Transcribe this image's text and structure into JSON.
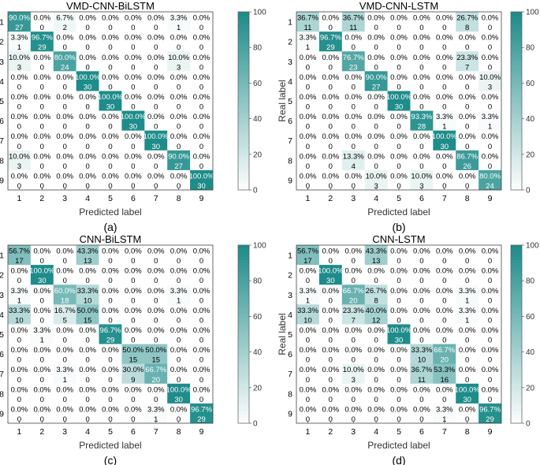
{
  "figure": {
    "colormap": {
      "low": "#ffffff",
      "high": "#1e8c8a"
    },
    "text_dark": "#000000",
    "text_light": "#ffffff"
  },
  "chart_data": [
    {
      "type": "heatmap",
      "title": "VMD-CNN-BiLSTM",
      "caption": "(a)",
      "xlabel": "Predicted label",
      "ylabel": "Real label",
      "categories": [
        "1",
        "2",
        "3",
        "4",
        "5",
        "6",
        "7",
        "8",
        "9"
      ],
      "colorbar": {
        "min": 0,
        "max": 100,
        "ticks": [
          "0",
          "20",
          "40",
          "60",
          "80",
          "100"
        ]
      },
      "percent": [
        [
          "90.0%",
          "0.0%",
          "6.7%",
          "0.0%",
          "0.0%",
          "0.0%",
          "0.0%",
          "3.3%",
          "0.0%"
        ],
        [
          "3.3%",
          "96.7%",
          "0.0%",
          "0.0%",
          "0.0%",
          "0.0%",
          "0.0%",
          "0.0%",
          "0.0%"
        ],
        [
          "10.0%",
          "0.0%",
          "80.0%",
          "0.0%",
          "0.0%",
          "0.0%",
          "0.0%",
          "10.0%",
          "0.0%"
        ],
        [
          "0.0%",
          "0.0%",
          "0.0%",
          "100.0%",
          "0.0%",
          "0.0%",
          "0.0%",
          "0.0%",
          "0.0%"
        ],
        [
          "0.0%",
          "0.0%",
          "0.0%",
          "0.0%",
          "100.0%",
          "0.0%",
          "0.0%",
          "0.0%",
          "0.0%"
        ],
        [
          "0.0%",
          "0.0%",
          "0.0%",
          "0.0%",
          "0.0%",
          "100.0%",
          "0.0%",
          "0.0%",
          "0.0%"
        ],
        [
          "0.0%",
          "0.0%",
          "0.0%",
          "0.0%",
          "0.0%",
          "0.0%",
          "100.0%",
          "0.0%",
          "0.0%"
        ],
        [
          "10.0%",
          "0.0%",
          "0.0%",
          "0.0%",
          "0.0%",
          "0.0%",
          "0.0%",
          "90.0%",
          "0.0%"
        ],
        [
          "0.0%",
          "0.0%",
          "0.0%",
          "0.0%",
          "0.0%",
          "0.0%",
          "0.0%",
          "0.0%",
          "100.0%"
        ]
      ],
      "counts": [
        [
          27,
          0,
          2,
          0,
          0,
          0,
          0,
          1,
          0
        ],
        [
          1,
          29,
          0,
          0,
          0,
          0,
          0,
          0,
          0
        ],
        [
          3,
          0,
          24,
          0,
          0,
          0,
          0,
          3,
          0
        ],
        [
          0,
          0,
          0,
          30,
          0,
          0,
          0,
          0,
          0
        ],
        [
          0,
          0,
          0,
          0,
          30,
          0,
          0,
          0,
          0
        ],
        [
          0,
          0,
          0,
          0,
          0,
          30,
          0,
          0,
          0
        ],
        [
          0,
          0,
          0,
          0,
          0,
          0,
          30,
          0,
          0
        ],
        [
          3,
          0,
          0,
          0,
          0,
          0,
          0,
          27,
          0
        ],
        [
          0,
          0,
          0,
          0,
          0,
          0,
          0,
          0,
          30
        ]
      ]
    },
    {
      "type": "heatmap",
      "title": "VMD-CNN-LSTM",
      "caption": "(b)",
      "xlabel": "Predicted label",
      "ylabel": "Real label",
      "categories": [
        "1",
        "2",
        "3",
        "4",
        "5",
        "6",
        "7",
        "8",
        "9"
      ],
      "colorbar": {
        "min": 0,
        "max": 100,
        "ticks": [
          "0",
          "20",
          "40",
          "60",
          "80",
          "100"
        ]
      },
      "percent": [
        [
          "36.7%",
          "0.0%",
          "36.7%",
          "0.0%",
          "0.0%",
          "0.0%",
          "0.0%",
          "26.7%",
          "0.0%"
        ],
        [
          "3.3%",
          "96.7%",
          "0.0%",
          "0.0%",
          "0.0%",
          "0.0%",
          "0.0%",
          "0.0%",
          "0.0%"
        ],
        [
          "0.0%",
          "0.0%",
          "76.7%",
          "0.0%",
          "0.0%",
          "0.0%",
          "0.0%",
          "23.3%",
          "0.0%"
        ],
        [
          "0.0%",
          "0.0%",
          "0.0%",
          "90.0%",
          "0.0%",
          "0.0%",
          "0.0%",
          "0.0%",
          "10.0%"
        ],
        [
          "0.0%",
          "0.0%",
          "0.0%",
          "0.0%",
          "100.0%",
          "0.0%",
          "0.0%",
          "0.0%",
          "0.0%"
        ],
        [
          "0.0%",
          "0.0%",
          "0.0%",
          "0.0%",
          "0.0%",
          "93.3%",
          "3.3%",
          "0.0%",
          "3.3%"
        ],
        [
          "0.0%",
          "0.0%",
          "0.0%",
          "0.0%",
          "0.0%",
          "0.0%",
          "100.0%",
          "0.0%",
          "0.0%"
        ],
        [
          "0.0%",
          "0.0%",
          "13.3%",
          "0.0%",
          "0.0%",
          "0.0%",
          "0.0%",
          "86.7%",
          "0.0%"
        ],
        [
          "0.0%",
          "0.0%",
          "0.0%",
          "10.0%",
          "0.0%",
          "10.0%",
          "0.0%",
          "0.0%",
          "80.0%"
        ]
      ],
      "counts": [
        [
          11,
          0,
          11,
          0,
          0,
          0,
          0,
          8,
          0
        ],
        [
          1,
          29,
          0,
          0,
          0,
          0,
          0,
          0,
          0
        ],
        [
          0,
          0,
          23,
          0,
          0,
          0,
          0,
          7,
          0
        ],
        [
          0,
          0,
          0,
          27,
          0,
          0,
          0,
          0,
          3
        ],
        [
          0,
          0,
          0,
          0,
          30,
          0,
          0,
          0,
          0
        ],
        [
          0,
          0,
          0,
          0,
          0,
          28,
          1,
          0,
          1
        ],
        [
          0,
          0,
          0,
          0,
          0,
          0,
          30,
          0,
          0
        ],
        [
          0,
          0,
          4,
          0,
          0,
          0,
          0,
          26,
          0
        ],
        [
          0,
          0,
          0,
          3,
          0,
          3,
          0,
          0,
          24
        ]
      ]
    },
    {
      "type": "heatmap",
      "title": "CNN-BiLSTM",
      "caption": "(c)",
      "xlabel": "Predicted label",
      "ylabel": "Real label",
      "categories": [
        "1",
        "2",
        "3",
        "4",
        "5",
        "6",
        "7",
        "8",
        "9"
      ],
      "colorbar": {
        "min": 0,
        "max": 100,
        "ticks": [
          "0",
          "20",
          "40",
          "60",
          "80",
          "100"
        ]
      },
      "percent": [
        [
          "56.7%",
          "0.0%",
          "0.0%",
          "43.3%",
          "0.0%",
          "0.0%",
          "0.0%",
          "0.0%",
          "0.0%"
        ],
        [
          "0.0%",
          "100.0%",
          "0.0%",
          "0.0%",
          "0.0%",
          "0.0%",
          "0.0%",
          "0.0%",
          "0.0%"
        ],
        [
          "3.3%",
          "0.0%",
          "60.0%",
          "33.3%",
          "0.0%",
          "0.0%",
          "0.0%",
          "3.3%",
          "0.0%"
        ],
        [
          "33.3%",
          "0.0%",
          "16.7%",
          "50.0%",
          "0.0%",
          "0.0%",
          "0.0%",
          "0.0%",
          "0.0%"
        ],
        [
          "0.0%",
          "3.3%",
          "0.0%",
          "0.0%",
          "96.7%",
          "0.0%",
          "0.0%",
          "0.0%",
          "0.0%"
        ],
        [
          "0.0%",
          "0.0%",
          "0.0%",
          "0.0%",
          "0.0%",
          "50.0%",
          "50.0%",
          "0.0%",
          "0.0%"
        ],
        [
          "0.0%",
          "0.0%",
          "3.3%",
          "0.0%",
          "0.0%",
          "30.0%",
          "66.7%",
          "0.0%",
          "0.0%"
        ],
        [
          "0.0%",
          "0.0%",
          "0.0%",
          "0.0%",
          "0.0%",
          "0.0%",
          "0.0%",
          "100.0%",
          "0.0%"
        ],
        [
          "0.0%",
          "0.0%",
          "0.0%",
          "0.0%",
          "0.0%",
          "0.0%",
          "3.3%",
          "0.0%",
          "96.7%"
        ]
      ],
      "counts": [
        [
          17,
          0,
          0,
          13,
          0,
          0,
          0,
          0,
          0
        ],
        [
          0,
          30,
          0,
          0,
          0,
          0,
          0,
          0,
          0
        ],
        [
          1,
          0,
          18,
          10,
          0,
          0,
          0,
          1,
          0
        ],
        [
          10,
          0,
          5,
          15,
          0,
          0,
          0,
          0,
          0
        ],
        [
          0,
          1,
          0,
          0,
          29,
          0,
          0,
          0,
          0
        ],
        [
          0,
          0,
          0,
          0,
          0,
          15,
          15,
          0,
          0
        ],
        [
          0,
          0,
          1,
          0,
          0,
          9,
          20,
          0,
          0
        ],
        [
          0,
          0,
          0,
          0,
          0,
          0,
          0,
          30,
          0
        ],
        [
          0,
          0,
          0,
          0,
          0,
          0,
          1,
          0,
          29
        ]
      ]
    },
    {
      "type": "heatmap",
      "title": "CNN-LSTM",
      "caption": "(d)",
      "xlabel": "Predicted label",
      "ylabel": "Real label",
      "categories": [
        "1",
        "2",
        "3",
        "4",
        "5",
        "6",
        "7",
        "8",
        "9"
      ],
      "colorbar": {
        "min": 0,
        "max": 100,
        "ticks": [
          "0",
          "20",
          "40",
          "60",
          "80",
          "100"
        ]
      },
      "percent": [
        [
          "56.7%",
          "0.0%",
          "0.0%",
          "43.3%",
          "0.0%",
          "0.0%",
          "0.0%",
          "0.0%",
          "0.0%"
        ],
        [
          "0.0%",
          "100.0%",
          "0.0%",
          "0.0%",
          "0.0%",
          "0.0%",
          "0.0%",
          "0.0%",
          "0.0%"
        ],
        [
          "3.3%",
          "0.0%",
          "66.7%",
          "26.7%",
          "0.0%",
          "0.0%",
          "0.0%",
          "3.3%",
          "0.0%"
        ],
        [
          "33.3%",
          "0.0%",
          "23.3%",
          "40.0%",
          "0.0%",
          "0.0%",
          "0.0%",
          "3.3%",
          "0.0%"
        ],
        [
          "0.0%",
          "0.0%",
          "0.0%",
          "0.0%",
          "100.0%",
          "0.0%",
          "0.0%",
          "0.0%",
          "0.0%"
        ],
        [
          "0.0%",
          "0.0%",
          "0.0%",
          "0.0%",
          "0.0%",
          "33.3%",
          "66.7%",
          "0.0%",
          "0.0%"
        ],
        [
          "0.0%",
          "0.0%",
          "10.0%",
          "0.0%",
          "0.0%",
          "36.7%",
          "53.3%",
          "0.0%",
          "0.0%"
        ],
        [
          "0.0%",
          "0.0%",
          "0.0%",
          "0.0%",
          "0.0%",
          "0.0%",
          "0.0%",
          "100.0%",
          "0.0%"
        ],
        [
          "0.0%",
          "0.0%",
          "0.0%",
          "0.0%",
          "0.0%",
          "0.0%",
          "3.3%",
          "0.0%",
          "96.7%"
        ]
      ],
      "counts": [
        [
          17,
          0,
          0,
          13,
          0,
          0,
          0,
          0,
          0
        ],
        [
          0,
          30,
          0,
          0,
          0,
          0,
          0,
          0,
          0
        ],
        [
          1,
          0,
          20,
          8,
          0,
          0,
          0,
          1,
          0
        ],
        [
          10,
          0,
          7,
          12,
          0,
          0,
          0,
          1,
          0
        ],
        [
          0,
          0,
          0,
          0,
          30,
          0,
          0,
          0,
          0
        ],
        [
          0,
          0,
          0,
          0,
          0,
          10,
          20,
          0,
          0
        ],
        [
          0,
          0,
          3,
          0,
          0,
          11,
          16,
          0,
          0
        ],
        [
          0,
          0,
          0,
          0,
          0,
          0,
          0,
          30,
          0
        ],
        [
          0,
          0,
          0,
          0,
          0,
          0,
          1,
          0,
          29
        ]
      ]
    }
  ]
}
